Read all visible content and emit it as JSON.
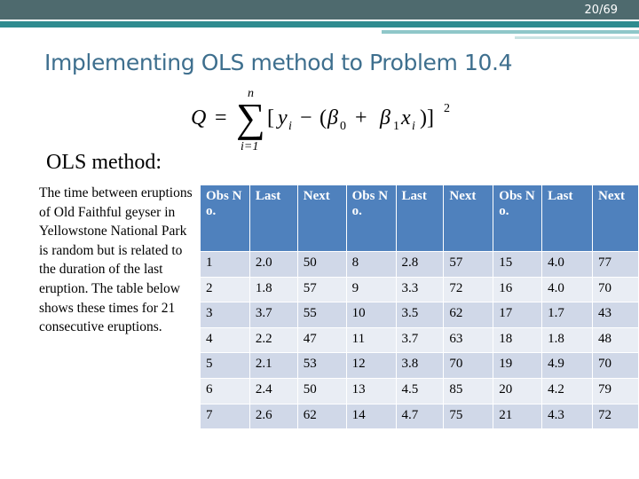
{
  "header": {
    "page_number": "20/69",
    "title": "Implementing OLS method to Problem 10.4"
  },
  "formula": {
    "tokens": [
      "Q",
      "=",
      "∑",
      "n",
      "i=1",
      "[",
      "y",
      "i",
      "−",
      "(",
      "β",
      "0",
      "+",
      "β",
      "1",
      "x",
      "i",
      ")]",
      "2"
    ]
  },
  "subtitle": "OLS method:",
  "paragraph": "The time between eruptions of Old Faithful geyser in Yellowstone National Park is random but is related to the duration of the last eruption. The table below shows these times for 21 consecutive eruptions.",
  "table": {
    "columns": [
      "Obs No.",
      "Last",
      "Next",
      "Obs No.",
      "Last",
      "Next",
      "Obs No.",
      "Last",
      "Next"
    ],
    "rows": [
      [
        "1",
        "2.0",
        "50",
        "8",
        "2.8",
        "57",
        "15",
        "4.0",
        "77"
      ],
      [
        "2",
        "1.8",
        "57",
        "9",
        "3.3",
        "72",
        "16",
        "4.0",
        "70"
      ],
      [
        "3",
        "3.7",
        "55",
        "10",
        "3.5",
        "62",
        "17",
        "1.7",
        "43"
      ],
      [
        "4",
        "2.2",
        "47",
        "11",
        "3.7",
        "63",
        "18",
        "1.8",
        "48"
      ],
      [
        "5",
        "2.1",
        "53",
        "12",
        "3.8",
        "70",
        "19",
        "4.9",
        "70"
      ],
      [
        "6",
        "2.4",
        "50",
        "13",
        "4.5",
        "85",
        "20",
        "4.2",
        "79"
      ],
      [
        "7",
        "2.6",
        "62",
        "14",
        "4.7",
        "75",
        "21",
        "4.3",
        "72"
      ]
    ]
  }
}
